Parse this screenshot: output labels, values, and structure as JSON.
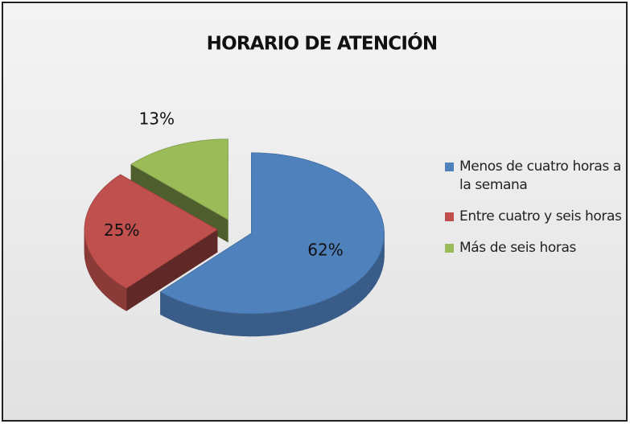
{
  "chart_data": {
    "type": "pie",
    "title": "HORARIO DE ATENCIÓN",
    "categories": [
      "Menos de cuatro horas a la semana",
      "Entre cuatro y seis horas",
      "Más de seis horas"
    ],
    "values": [
      62,
      25,
      13
    ],
    "value_labels": [
      "62%",
      "25%",
      "13%"
    ],
    "colors": [
      "#4f81bd",
      "#c0504d",
      "#9bbb59"
    ],
    "legend": "right",
    "3d": true
  }
}
